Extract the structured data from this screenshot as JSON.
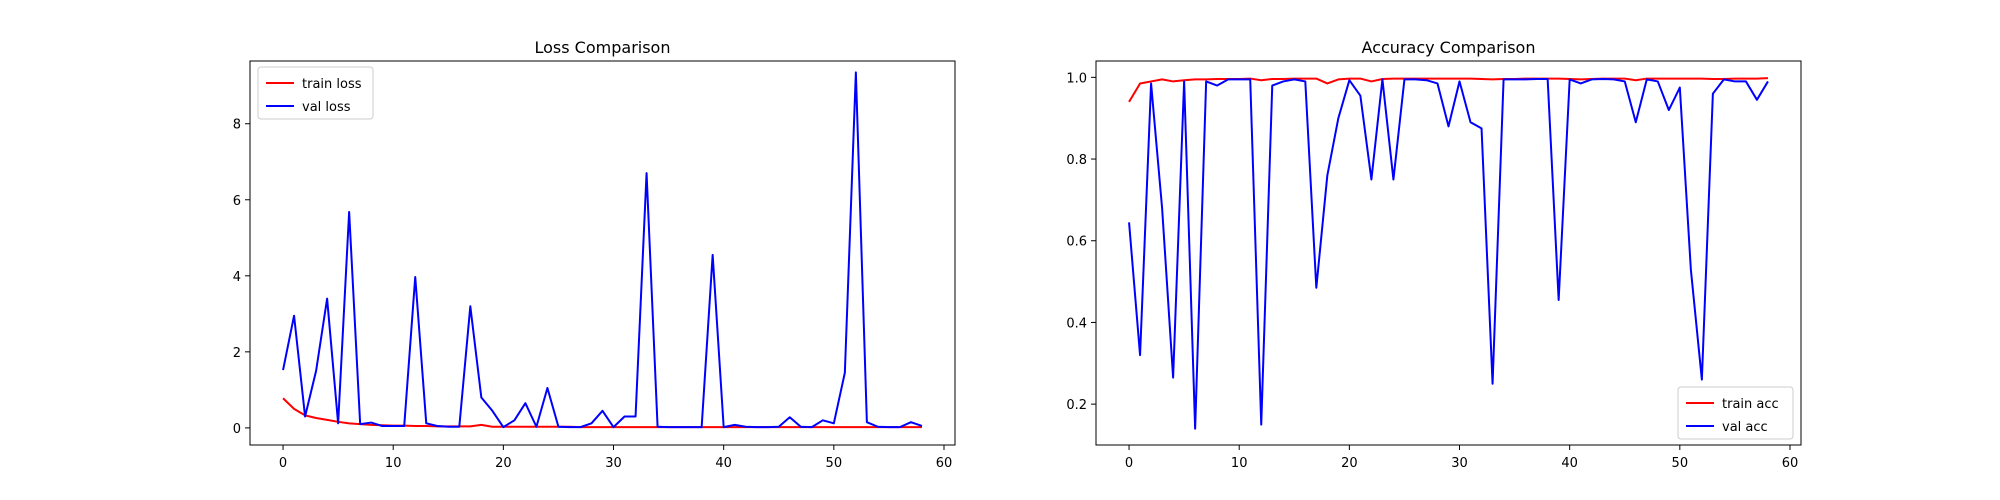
{
  "chart_data": [
    {
      "type": "line",
      "title": "Loss Comparison",
      "xlabel": "",
      "ylabel": "",
      "xlim": [
        -3,
        61
      ],
      "ylim": [
        -0.45,
        9.65
      ],
      "xticks": [
        0,
        10,
        20,
        30,
        40,
        50,
        60
      ],
      "yticks": [
        0,
        2,
        4,
        6,
        8
      ],
      "ytick_labels": [
        "0",
        "2",
        "4",
        "6",
        "8"
      ],
      "grid": false,
      "legend": "top-left",
      "x": [
        0,
        1,
        2,
        3,
        4,
        5,
        6,
        7,
        8,
        9,
        10,
        11,
        12,
        13,
        14,
        15,
        16,
        17,
        18,
        19,
        20,
        21,
        22,
        23,
        24,
        25,
        26,
        27,
        28,
        29,
        30,
        31,
        32,
        33,
        34,
        35,
        36,
        37,
        38,
        39,
        40,
        41,
        42,
        43,
        44,
        45,
        46,
        47,
        48,
        49,
        50,
        51,
        52,
        53,
        54,
        55,
        56,
        57,
        58
      ],
      "series": [
        {
          "name": "train loss",
          "color": "#ff0000",
          "values": [
            0.78,
            0.5,
            0.33,
            0.26,
            0.21,
            0.16,
            0.12,
            0.1,
            0.08,
            0.07,
            0.06,
            0.06,
            0.05,
            0.05,
            0.04,
            0.04,
            0.04,
            0.04,
            0.08,
            0.03,
            0.03,
            0.03,
            0.03,
            0.03,
            0.03,
            0.03,
            0.03,
            0.02,
            0.02,
            0.02,
            0.02,
            0.02,
            0.02,
            0.02,
            0.02,
            0.02,
            0.02,
            0.02,
            0.02,
            0.02,
            0.02,
            0.02,
            0.02,
            0.02,
            0.02,
            0.02,
            0.02,
            0.02,
            0.02,
            0.02,
            0.02,
            0.02,
            0.02,
            0.02,
            0.02,
            0.02,
            0.02,
            0.02,
            0.02
          ]
        },
        {
          "name": "val loss",
          "color": "#0000ff",
          "values": [
            1.52,
            2.95,
            0.3,
            1.5,
            3.4,
            0.12,
            5.68,
            0.1,
            0.14,
            0.05,
            0.05,
            0.05,
            3.97,
            0.12,
            0.05,
            0.03,
            0.03,
            3.2,
            0.8,
            0.45,
            0.02,
            0.2,
            0.65,
            0.03,
            1.05,
            0.03,
            0.02,
            0.02,
            0.12,
            0.45,
            0.02,
            0.3,
            0.3,
            6.7,
            0.03,
            0.02,
            0.02,
            0.02,
            0.02,
            4.55,
            0.02,
            0.08,
            0.03,
            0.02,
            0.02,
            0.03,
            0.28,
            0.03,
            0.02,
            0.2,
            0.12,
            1.45,
            9.35,
            0.15,
            0.03,
            0.02,
            0.02,
            0.15,
            0.05
          ]
        }
      ]
    },
    {
      "type": "line",
      "title": "Accuracy Comparison",
      "xlabel": "",
      "ylabel": "",
      "xlim": [
        -3,
        61
      ],
      "ylim": [
        0.1,
        1.04
      ],
      "xticks": [
        0,
        10,
        20,
        30,
        40,
        50,
        60
      ],
      "yticks": [
        0.2,
        0.4,
        0.6,
        0.8,
        1.0
      ],
      "ytick_labels": [
        "0.2",
        "0.4",
        "0.6",
        "0.8",
        "1.0"
      ],
      "grid": false,
      "legend": "bottom-right",
      "x": [
        0,
        1,
        2,
        3,
        4,
        5,
        6,
        7,
        8,
        9,
        10,
        11,
        12,
        13,
        14,
        15,
        16,
        17,
        18,
        19,
        20,
        21,
        22,
        23,
        24,
        25,
        26,
        27,
        28,
        29,
        30,
        31,
        32,
        33,
        34,
        35,
        36,
        37,
        38,
        39,
        40,
        41,
        42,
        43,
        44,
        45,
        46,
        47,
        48,
        49,
        50,
        51,
        52,
        53,
        54,
        55,
        56,
        57,
        58
      ],
      "series": [
        {
          "name": "train acc",
          "color": "#ff0000",
          "values": [
            0.94,
            0.985,
            0.99,
            0.995,
            0.99,
            0.993,
            0.995,
            0.995,
            0.996,
            0.996,
            0.996,
            0.997,
            0.993,
            0.996,
            0.996,
            0.997,
            0.997,
            0.997,
            0.985,
            0.995,
            0.997,
            0.997,
            0.99,
            0.996,
            0.997,
            0.997,
            0.997,
            0.997,
            0.997,
            0.997,
            0.997,
            0.997,
            0.996,
            0.995,
            0.996,
            0.996,
            0.997,
            0.997,
            0.997,
            0.997,
            0.996,
            0.995,
            0.996,
            0.997,
            0.997,
            0.997,
            0.993,
            0.997,
            0.997,
            0.997,
            0.997,
            0.997,
            0.997,
            0.996,
            0.996,
            0.997,
            0.997,
            0.997,
            0.998
          ]
        },
        {
          "name": "val acc",
          "color": "#0000ff",
          "values": [
            0.645,
            0.32,
            0.985,
            0.68,
            0.265,
            0.99,
            0.14,
            0.99,
            0.98,
            0.995,
            0.995,
            0.995,
            0.15,
            0.98,
            0.99,
            0.995,
            0.99,
            0.485,
            0.76,
            0.9,
            0.993,
            0.955,
            0.75,
            0.995,
            0.75,
            0.995,
            0.995,
            0.993,
            0.985,
            0.88,
            0.99,
            0.89,
            0.875,
            0.25,
            0.995,
            0.995,
            0.995,
            0.996,
            0.996,
            0.455,
            0.995,
            0.985,
            0.995,
            0.996,
            0.995,
            0.99,
            0.89,
            0.995,
            0.99,
            0.92,
            0.975,
            0.53,
            0.26,
            0.96,
            0.995,
            0.99,
            0.99,
            0.945,
            0.99
          ]
        }
      ]
    }
  ]
}
